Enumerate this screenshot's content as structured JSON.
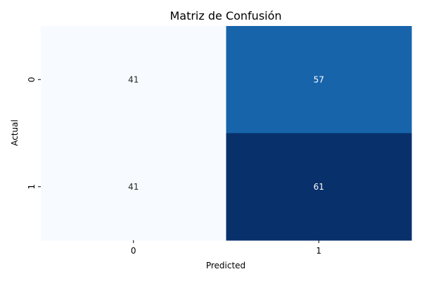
{
  "chart_data": {
    "type": "heatmap",
    "title": "Matriz de Confusión",
    "xlabel": "Predicted",
    "ylabel": "Actual",
    "x_categories": [
      "0",
      "1"
    ],
    "y_categories": [
      "0",
      "1"
    ],
    "values": [
      [
        41,
        57
      ],
      [
        41,
        61
      ]
    ],
    "colormap": "Blues",
    "colorbar": false,
    "grid": false
  }
}
